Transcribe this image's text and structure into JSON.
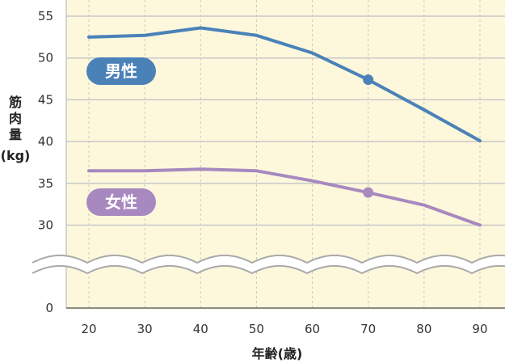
{
  "chart_data": {
    "type": "line",
    "xlabel": "年齢(歳)",
    "ylabel_lines": [
      "筋",
      "肉",
      "量",
      "(kg)"
    ],
    "x": [
      20,
      30,
      40,
      50,
      60,
      70,
      80,
      90
    ],
    "y_ticks": [
      0,
      30,
      35,
      40,
      45,
      50,
      55
    ],
    "y_break": "between 0 and 30",
    "grid": true,
    "series": [
      {
        "name": "男性",
        "color": "#4a82b8",
        "values": [
          52.5,
          52.7,
          53.6,
          52.7,
          50.6,
          47.4,
          43.8,
          40.1
        ],
        "marker_at_x": 70
      },
      {
        "name": "女性",
        "color": "#a789bf",
        "values": [
          36.5,
          36.5,
          36.7,
          36.5,
          35.3,
          33.9,
          32.4,
          30.0
        ],
        "marker_at_x": 70
      }
    ],
    "plot_background": "#fdf8dc",
    "grid_color": "#c8c8c8"
  }
}
